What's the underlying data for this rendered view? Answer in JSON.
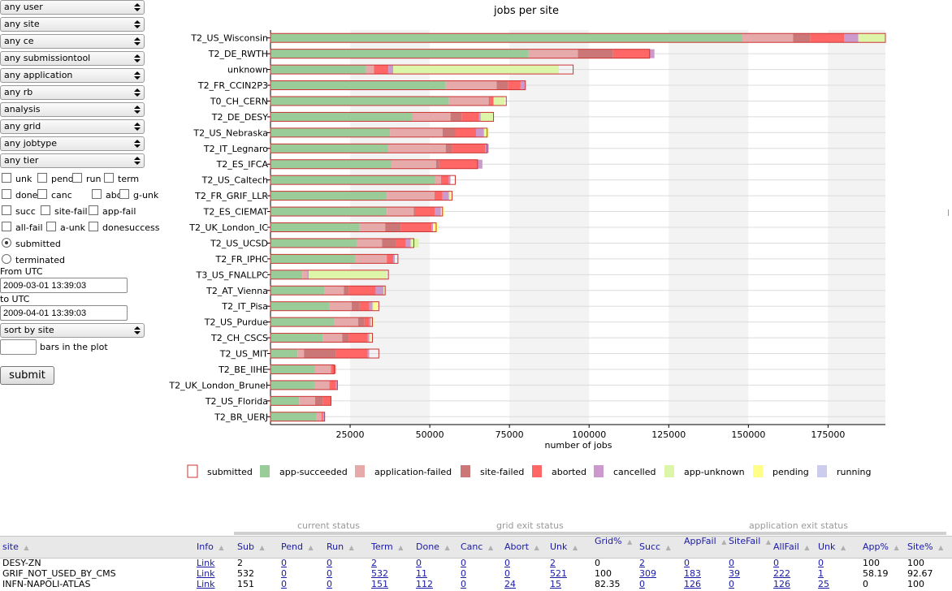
{
  "filters": {
    "selects": [
      "any user",
      "any site",
      "any ce",
      "any submissiontool",
      "any application",
      "any rb",
      "analysis",
      "any grid",
      "any jobtype",
      "any tier"
    ],
    "checkbox_rows": [
      [
        "unk",
        "pend",
        "run",
        "term"
      ],
      [
        "done",
        "canc",
        "abort",
        "g-unk"
      ],
      [
        "succ",
        "site-fail",
        "app-fail"
      ],
      [
        "all-fail",
        "a-unk",
        "donesuccess"
      ]
    ],
    "radio_submitted": "submitted",
    "radio_terminated": "terminated",
    "from_label": "From UTC",
    "from_value": "2009-03-01 13:39:03",
    "to_label": "to UTC",
    "to_value": "2009-04-01 13:39:03",
    "sort_select": "sort by site",
    "bars_label": "bars in the plot",
    "bars_value": "",
    "submit_label": "submit"
  },
  "chart_data": {
    "type": "bar",
    "orientation": "horizontal",
    "stacked": true,
    "title": "jobs per site",
    "xlabel": "number of jobs",
    "ylabel": "",
    "xlim": [
      0,
      193000
    ],
    "xticks": [
      "25000",
      "50000",
      "75000",
      "100000",
      "125000",
      "150000",
      "175000"
    ],
    "xtick_values": [
      25000,
      50000,
      75000,
      100000,
      125000,
      150000,
      175000
    ],
    "categories": [
      "T2_US_Wisconsin",
      "T2_DE_RWTH",
      "unknown",
      "T2_FR_CCIN2P3",
      "T0_CH_CERN",
      "T2_DE_DESY",
      "T2_US_Nebraska",
      "T2_IT_Legnaro",
      "T2_ES_IFCA",
      "T2_US_Caltech",
      "T2_FR_GRIF_LLR",
      "T2_ES_CIEMAT",
      "T2_UK_London_IC",
      "T2_US_UCSD",
      "T2_FR_IPHC",
      "T3_US_FNALLPC",
      "T2_AT_Vienna",
      "T2_IT_Pisa",
      "T2_US_Purdue",
      "T2_CH_CSCS",
      "T2_US_MIT",
      "T2_BE_IIHE",
      "T2_UK_London_Brunel",
      "T2_US_Florida",
      "T2_BR_UERJ"
    ],
    "submitted": [
      193000,
      119000,
      95000,
      80000,
      74000,
      70000,
      68000,
      68000,
      65000,
      58000,
      57000,
      54000,
      52000,
      45000,
      40000,
      37000,
      36000,
      34000,
      32000,
      32000,
      34000,
      20000,
      21000,
      19000,
      17000
    ],
    "series": [
      {
        "name": "app-succeeded",
        "color": "#99cc99",
        "values": [
          148000,
          81000,
          30000,
          55000,
          56000,
          44500,
          37500,
          37000,
          38000,
          51500,
          36500,
          36500,
          28000,
          27000,
          26500,
          10000,
          17000,
          18500,
          20000,
          16500,
          8500,
          14000,
          14000,
          9000,
          14500
        ]
      },
      {
        "name": "application-failed",
        "color": "#e6aaaa",
        "values": [
          16000,
          15500,
          2500,
          16000,
          12500,
          12000,
          16500,
          18000,
          14000,
          2000,
          15000,
          8500,
          8000,
          8000,
          10000,
          1500,
          6000,
          7000,
          7500,
          6000,
          2000,
          5000,
          4500,
          5000,
          1500
        ]
      },
      {
        "name": "site-failed",
        "color": "#cc7777",
        "values": [
          5500,
          11000,
          0,
          3500,
          500,
          3500,
          4000,
          2000,
          1000,
          0,
          0,
          500,
          5000,
          4500,
          0,
          0,
          1500,
          2500,
          2000,
          2000,
          10000,
          0,
          0,
          2500,
          0
        ]
      },
      {
        "name": "aborted",
        "color": "#ff6666",
        "values": [
          10500,
          11500,
          4500,
          4000,
          1000,
          5500,
          6500,
          10500,
          12000,
          2500,
          2500,
          6000,
          9500,
          3000,
          2000,
          0,
          8500,
          3000,
          1500,
          6000,
          10000,
          1500,
          2000,
          2500,
          500
        ]
      },
      {
        "name": "cancelled",
        "color": "#cc99cc",
        "values": [
          4500,
          1500,
          1500,
          1500,
          0,
          500,
          2500,
          1000,
          1500,
          500,
          2000,
          2000,
          500,
          1500,
          500,
          500,
          2500,
          1000,
          500,
          500,
          500,
          0,
          500,
          0,
          500
        ]
      },
      {
        "name": "app-unknown",
        "color": "#ddf5a8",
        "values": [
          8500,
          0,
          52000,
          0,
          3500,
          4000,
          500,
          0,
          0,
          0,
          500,
          500,
          0,
          2500,
          0,
          24500,
          500,
          500,
          500,
          500,
          0,
          0,
          0,
          0,
          0
        ]
      },
      {
        "name": "pending",
        "color": "#ffff88",
        "values": [
          0,
          0,
          0,
          0,
          0,
          0,
          1000,
          0,
          0,
          0,
          500,
          500,
          1500,
          0,
          0,
          0,
          0,
          1000,
          500,
          0,
          0,
          0,
          0,
          0,
          0
        ]
      },
      {
        "name": "running",
        "color": "#ccccee",
        "values": [
          0,
          0,
          0,
          0,
          0,
          0,
          0,
          0,
          0,
          0,
          0,
          0,
          0,
          0,
          0,
          0,
          0,
          0,
          0,
          0,
          0,
          0,
          0,
          0,
          0
        ]
      }
    ],
    "legend": [
      {
        "name": "submitted",
        "color": "#ffffff",
        "border": "#cc3333"
      },
      {
        "name": "app-succeeded",
        "color": "#99cc99"
      },
      {
        "name": "application-failed",
        "color": "#e6aaaa"
      },
      {
        "name": "site-failed",
        "color": "#cc7777"
      },
      {
        "name": "aborted",
        "color": "#ff6666"
      },
      {
        "name": "cancelled",
        "color": "#cc99cc"
      },
      {
        "name": "app-unknown",
        "color": "#ddf5a8"
      },
      {
        "name": "pending",
        "color": "#ffff88"
      },
      {
        "name": "running",
        "color": "#ccccee"
      }
    ],
    "legend_placement": "bottom",
    "grid": true
  },
  "table": {
    "groups": [
      "current status",
      "grid exit status",
      "application exit status"
    ],
    "headers": [
      "site",
      "Info",
      "Sub",
      "Pend",
      "Run",
      "Term",
      "Done",
      "Canc",
      "Abort",
      "Unk",
      "Grid%",
      "Succ",
      "AppFail",
      "SiteFail",
      "AllFail",
      "Unk",
      "App%",
      "Site%"
    ],
    "rows": [
      [
        "DESY-ZN",
        "Link",
        "2",
        "0",
        "0",
        "2",
        "0",
        "0",
        "0",
        "2",
        "0",
        "2",
        "0",
        "0",
        "0",
        "0",
        "100",
        "100"
      ],
      [
        "GRIF_NOT_USED_BY_CMS",
        "Link",
        "532",
        "0",
        "0",
        "532",
        "11",
        "0",
        "0",
        "521",
        "100",
        "309",
        "183",
        "39",
        "222",
        "1",
        "58.19",
        "92.67"
      ],
      [
        "INFN-NAPOLI-ATLAS",
        "Link",
        "151",
        "0",
        "0",
        "151",
        "112",
        "0",
        "24",
        "15",
        "82.35",
        "0",
        "126",
        "0",
        "126",
        "25",
        "0",
        "100"
      ]
    ]
  }
}
